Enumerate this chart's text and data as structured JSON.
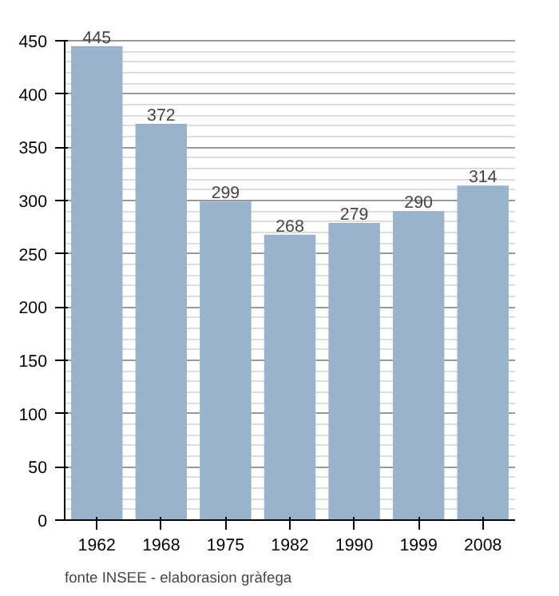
{
  "chart_data": {
    "type": "bar",
    "categories": [
      "1962",
      "1968",
      "1975",
      "1982",
      "1990",
      "1999",
      "2008"
    ],
    "values": [
      445,
      372,
      299,
      268,
      279,
      290,
      314
    ],
    "color": "#9ab3cc",
    "ylim": [
      0,
      450
    ],
    "yticks": [
      0,
      50,
      100,
      150,
      200,
      250,
      300,
      350,
      400,
      450
    ],
    "grid": "y",
    "data_labels": true,
    "annotations": [
      "fonte INSEE - elaborasion gràfega"
    ]
  }
}
